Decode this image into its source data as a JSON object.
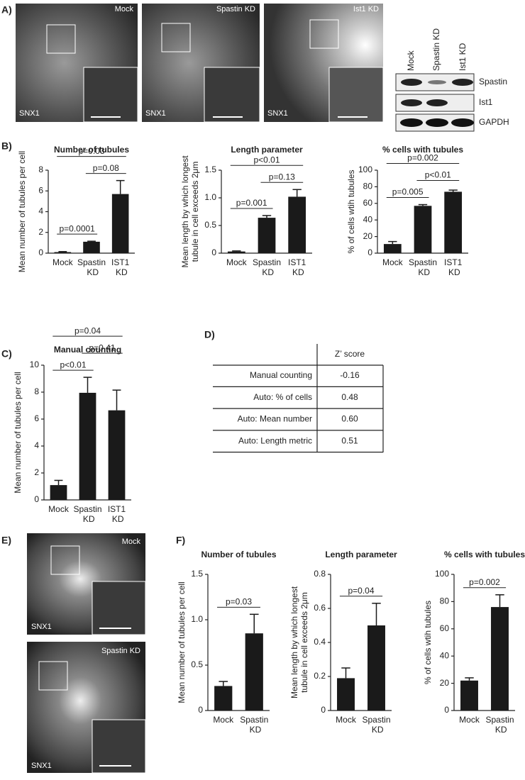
{
  "panels": [
    "A)",
    "B)",
    "C)",
    "D)",
    "E)",
    "F)"
  ],
  "images_a": {
    "labels": [
      "Mock",
      "Spastin KD",
      "Ist1 KD"
    ],
    "stain": "SNX1"
  },
  "blot": {
    "columns": [
      "Mock",
      "Spastin KD",
      "Ist1 KD"
    ],
    "rows": [
      "Spastin",
      "Ist1",
      "GAPDH"
    ]
  },
  "images_e": {
    "labels": [
      "Mock",
      "Spastin KD"
    ],
    "stain": "SNX1"
  },
  "table": {
    "header": "Z’ score",
    "rows": [
      [
        "Manual counting",
        "-0.16"
      ],
      [
        "Auto: % of cells",
        "0.48"
      ],
      [
        "Auto: Mean number",
        "0.60"
      ],
      [
        "Auto: Length metric",
        "0.51"
      ]
    ]
  },
  "chart_data": [
    {
      "type": "bar",
      "title": "Number of tubules",
      "y_label": [
        "Mean number of  tubules per cell"
      ],
      "color": "#1a1a1a",
      "categories": [
        "Mock",
        "Spastin KD",
        "IST1 KD"
      ],
      "values": [
        0.1,
        1.1,
        5.7
      ],
      "errors": [
        0.05,
        0.05,
        1.3
      ],
      "ylim": [
        0,
        8
      ],
      "yticks": [
        0,
        2,
        4,
        6,
        8
      ],
      "comparisons": [
        {
          "between": [
            "Mock",
            "Spastin KD"
          ],
          "label": "p=0.0001"
        },
        {
          "between": [
            "Spastin KD",
            "IST1 KD"
          ],
          "label": "p=0.08"
        },
        {
          "between": [
            "Mock",
            "IST1 KD"
          ],
          "label": "p=0.03"
        }
      ]
    },
    {
      "type": "bar",
      "title": "Length parameter",
      "y_label": [
        "Mean length by which longest",
        "tubule in cell exceeds 2μm"
      ],
      "color": "#1a1a1a",
      "categories": [
        "Mock",
        "Spastin KD",
        "IST1 KD"
      ],
      "values": [
        0.03,
        0.64,
        1.02
      ],
      "errors": [
        0.01,
        0.04,
        0.13
      ],
      "ylim": [
        0,
        1.5
      ],
      "yticks": [
        0,
        0.5,
        {
          "value": 1,
          "label": "1.0"
        },
        1.5
      ],
      "comparisons": [
        {
          "between": [
            "Mock",
            "Spastin KD"
          ],
          "label": "p=0.001"
        },
        {
          "between": [
            "Spastin KD",
            "IST1 KD"
          ],
          "label": "p=0.13"
        },
        {
          "between": [
            "Mock",
            "IST1 KD"
          ],
          "label": "p<0.01"
        }
      ]
    },
    {
      "type": "bar",
      "title": "% cells with tubules",
      "y_label": [
        "% of cells wtih tubules"
      ],
      "color": "#1a1a1a",
      "categories": [
        "Mock",
        "Spastin KD",
        "IST1 KD"
      ],
      "values": [
        11,
        57,
        74
      ],
      "errors": [
        3,
        1.5,
        2
      ],
      "ylim": [
        0,
        100
      ],
      "yticks": [
        0,
        20,
        40,
        60,
        80,
        100
      ],
      "comparisons": [
        {
          "between": [
            "Mock",
            "Spastin KD"
          ],
          "label": "p=0.005"
        },
        {
          "between": [
            "Spastin KD",
            "IST1 KD"
          ],
          "label": "p<0.01"
        },
        {
          "between": [
            "Mock",
            "IST1 KD"
          ],
          "label": "p=0.002"
        }
      ]
    },
    {
      "type": "bar",
      "title": "Manual counting",
      "y_label": [
        "Mean number of  tubules per cell"
      ],
      "color": "#1a1a1a",
      "categories": [
        "Mock",
        "Spastin KD",
        "IST1 KD"
      ],
      "values": [
        1.1,
        7.95,
        6.65
      ],
      "errors": [
        0.35,
        1.15,
        1.5
      ],
      "ylim": [
        0,
        10
      ],
      "yticks": [
        0,
        2,
        4,
        6,
        8,
        10
      ],
      "comparisons": [
        {
          "between": [
            "Mock",
            "Spastin KD"
          ],
          "label": "p<0.01"
        },
        {
          "between": [
            "Spastin KD",
            "IST1 KD"
          ],
          "label": "p=0.41"
        },
        {
          "between": [
            "Mock",
            "IST1 KD"
          ],
          "label": "p=0.04"
        }
      ]
    },
    {
      "type": "bar",
      "title": "Number of tubules",
      "y_label": [
        "Mean number of  tubules per cell"
      ],
      "color": "#1a1a1a",
      "categories": [
        "Mock",
        "Spastin KD"
      ],
      "values": [
        0.27,
        0.85
      ],
      "errors": [
        0.05,
        0.21
      ],
      "ylim": [
        0,
        1.5
      ],
      "yticks": [
        0,
        0.5,
        {
          "value": 1,
          "label": "1.0"
        },
        1.5
      ],
      "comparisons": [
        {
          "between": [
            "Mock",
            "Spastin KD"
          ],
          "label": "p=0.03"
        }
      ]
    },
    {
      "type": "bar",
      "title": "Length parameter",
      "y_label": [
        "Mean length by which longest",
        "tubule in cell exceeds 2μm"
      ],
      "color": "#1a1a1a",
      "categories": [
        "Mock",
        "Spastin KD"
      ],
      "values": [
        0.19,
        0.5
      ],
      "errors": [
        0.06,
        0.13
      ],
      "ylim": [
        0,
        0.8
      ],
      "yticks": [
        0,
        0.2,
        0.4,
        0.6,
        0.8
      ],
      "comparisons": [
        {
          "between": [
            "Mock",
            "Spastin KD"
          ],
          "label": "p=0.04"
        }
      ]
    },
    {
      "type": "bar",
      "title": "% cells with tubules",
      "y_label": [
        "% of cells wtih tubules"
      ],
      "color": "#1a1a1a",
      "categories": [
        "Mock",
        "Spastin KD"
      ],
      "values": [
        22,
        76
      ],
      "errors": [
        2,
        9
      ],
      "ylim": [
        0,
        100
      ],
      "yticks": [
        0,
        20,
        40,
        60,
        80,
        100
      ],
      "comparisons": [
        {
          "between": [
            "Mock",
            "Spastin KD"
          ],
          "label": "p=0.002"
        }
      ]
    }
  ]
}
